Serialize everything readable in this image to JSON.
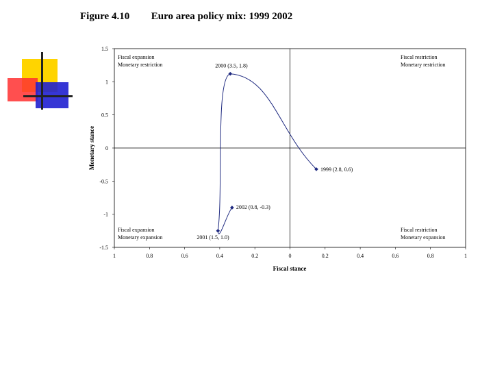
{
  "figure": {
    "number": "Figure 4.10",
    "title": "Euro area policy mix: 1999 2002"
  },
  "colors": {
    "line": "#1f2a80",
    "logo_yellow": "#ffd400",
    "logo_red": "#ff3030",
    "logo_blue": "#2020d0"
  },
  "chart_data": {
    "type": "line",
    "xlabel": "Fiscal stance",
    "ylabel": "Monetary stance",
    "xlim": [
      -1,
      1
    ],
    "ylim": [
      -1.5,
      1.5
    ],
    "x_ticks": [
      {
        "value": -1,
        "label": "1"
      },
      {
        "value": -0.8,
        "label": "0.8"
      },
      {
        "value": -0.6,
        "label": "0.6"
      },
      {
        "value": -0.4,
        "label": "0.4"
      },
      {
        "value": -0.2,
        "label": "0.2"
      },
      {
        "value": 0,
        "label": "0"
      },
      {
        "value": 0.2,
        "label": "0.2"
      },
      {
        "value": 0.4,
        "label": "0.4"
      },
      {
        "value": 0.6,
        "label": "0.6"
      },
      {
        "value": 0.8,
        "label": "0.8"
      },
      {
        "value": 1,
        "label": "1"
      }
    ],
    "y_ticks": [
      {
        "value": 1.5,
        "label": "1.5"
      },
      {
        "value": 1,
        "label": "1"
      },
      {
        "value": 0.5,
        "label": "0.5"
      },
      {
        "value": 0,
        "label": "0"
      },
      {
        "value": -0.5,
        "label": "-0.5"
      },
      {
        "value": -1,
        "label": "-1"
      },
      {
        "value": -1.5,
        "label": "-1.5"
      }
    ],
    "grid": false,
    "points": [
      {
        "x": 0.15,
        "y": -0.32,
        "label": "1999 (2.8, 0.6)"
      },
      {
        "x": -0.34,
        "y": 1.12,
        "label": "2000 (3.5, 1.8)"
      },
      {
        "x": -0.41,
        "y": -1.25,
        "label": "2001 (1.5, 1.0)"
      },
      {
        "x": -0.33,
        "y": -0.9,
        "label": "2002 (0.8, -0.3)"
      }
    ],
    "quadrants": {
      "top_left": [
        "Fiscal expansion",
        "Monetary restriction"
      ],
      "top_right": [
        "Fiscal restriction",
        "Monetary restriction"
      ],
      "bottom_left": [
        "Fiscal expansion",
        "Monetary expansion"
      ],
      "bottom_right": [
        "Fiscal restriction",
        "Monetary expansion"
      ]
    }
  }
}
